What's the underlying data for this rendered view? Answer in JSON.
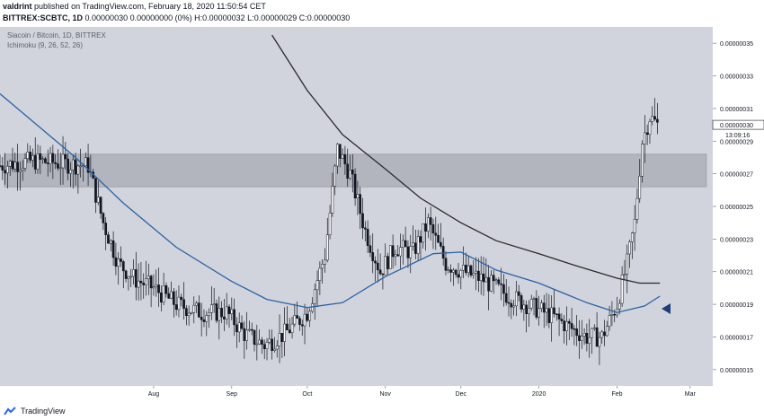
{
  "header": {
    "author": "valdrint",
    "publish_text": "published on TradingView.com, February 18, 2020 11:50:54 CET",
    "symbol": "BITTREX:SCBTC, 1D",
    "ohlc_text": "0.00000030 0.00000000 (0%) H:0.00000032 L:0.00000029 C:0.00000030"
  },
  "legend": {
    "title": "Siacoin / Bitcoin, 1D, BITTREX",
    "indicator": "Ichimoku (9, 26, 52, 26)"
  },
  "price_label": {
    "value": "0.00000030",
    "countdown": "13:09:16"
  },
  "footer": {
    "brand": "TradingView"
  },
  "colors": {
    "background": "#d1d4dc",
    "zone": "#b2b5be",
    "candle_body": "#131722",
    "ma_black": "#2a2a2a",
    "ma_blue": "#2962a6",
    "arrow": "#1c3f7a"
  },
  "chart_data": {
    "type": "candlestick",
    "y_unit": "BTC",
    "ylim": [
      1.4e-07,
      3.6e-07
    ],
    "y_ticks": [
      "0.00000015",
      "0.00000017",
      "0.00000019",
      "0.00000021",
      "0.00000023",
      "0.00000025",
      "0.00000027",
      "0.00000029",
      "0.00000031",
      "0.00000033",
      "0.00000035"
    ],
    "x_labels": [
      "Aug",
      "Sep",
      "Oct",
      "Nov",
      "Dec",
      "2020",
      "Feb",
      "Mar"
    ],
    "x_label_dates": [
      "2019-08-01",
      "2019-09-01",
      "2019-10-01",
      "2019-11-01",
      "2019-12-01",
      "2020-01-01",
      "2020-02-01",
      "2020-03-01"
    ],
    "x_range": [
      "2019-06-01",
      "2020-03-10"
    ],
    "resistance_zone": [
      2.62e-07,
      2.82e-07
    ],
    "candle_closes": {
      "dates": [
        "2019-06-01",
        "2019-06-14",
        "2019-06-28",
        "2019-07-06",
        "2019-07-12",
        "2019-07-18",
        "2019-07-25",
        "2019-08-01",
        "2019-08-10",
        "2019-08-20",
        "2019-08-30",
        "2019-09-06",
        "2019-09-14",
        "2019-09-22",
        "2019-10-01",
        "2019-10-08",
        "2019-10-13",
        "2019-10-18",
        "2019-10-24",
        "2019-10-30",
        "2019-11-05",
        "2019-11-12",
        "2019-11-18",
        "2019-11-25",
        "2019-12-02",
        "2019-12-10",
        "2019-12-20",
        "2019-12-30",
        "2020-01-07",
        "2020-01-14",
        "2020-01-20",
        "2020-01-26",
        "2020-02-01",
        "2020-02-05",
        "2020-02-08",
        "2020-02-11",
        "2020-02-14",
        "2020-02-17"
      ],
      "values": [
        2.75e-07,
        2.78e-07,
        2.76e-07,
        2.75e-07,
        2.4e-07,
        2.15e-07,
        2.05e-07,
        2e-07,
        1.9e-07,
        1.85e-07,
        1.85e-07,
        1.72e-07,
        1.65e-07,
        1.72e-07,
        1.85e-07,
        2.2e-07,
        2.85e-07,
        2.7e-07,
        2.35e-07,
        2.1e-07,
        2.25e-07,
        2.22e-07,
        2.4e-07,
        2.15e-07,
        2.1e-07,
        2.05e-07,
        1.95e-07,
        1.88e-07,
        1.82e-07,
        1.75e-07,
        1.7e-07,
        1.7e-07,
        1.9e-07,
        2.15e-07,
        2.4e-07,
        2.9e-07,
        3.05e-07,
        3e-07
      ]
    },
    "series": [
      {
        "dates": [
          "2019-06-01",
          "2019-07-01",
          "2019-07-20",
          "2019-08-10",
          "2019-09-01",
          "2019-09-15",
          "2019-10-01",
          "2019-10-15",
          "2019-11-01",
          "2019-11-20",
          "2019-12-01",
          "2019-12-15",
          "2020-01-01",
          "2020-01-20",
          "2020-02-01",
          "2020-02-12",
          "2020-02-18"
        ],
        "values": [
          3.19e-07,
          2.8e-07,
          2.52e-07,
          2.25e-07,
          2.04e-07,
          1.93e-07,
          1.88e-07,
          1.91e-07,
          2.07e-07,
          2.21e-07,
          2.22e-07,
          2.11e-07,
          2.03e-07,
          1.91e-07,
          1.85e-07,
          1.89e-07,
          1.95e-07
        ]
      },
      {
        "dates": [
          "2019-09-17",
          "2019-10-01",
          "2019-10-15",
          "2019-11-01",
          "2019-11-15",
          "2019-12-01",
          "2019-12-15",
          "2020-01-01",
          "2020-01-15",
          "2020-02-01",
          "2020-02-10",
          "2020-02-18"
        ],
        "values": [
          3.55e-07,
          3.21e-07,
          2.94e-07,
          2.73e-07,
          2.55e-07,
          2.4e-07,
          2.29e-07,
          2.21e-07,
          2.14e-07,
          2.06e-07,
          2.03e-07,
          2.03e-07
        ]
      }
    ]
  }
}
